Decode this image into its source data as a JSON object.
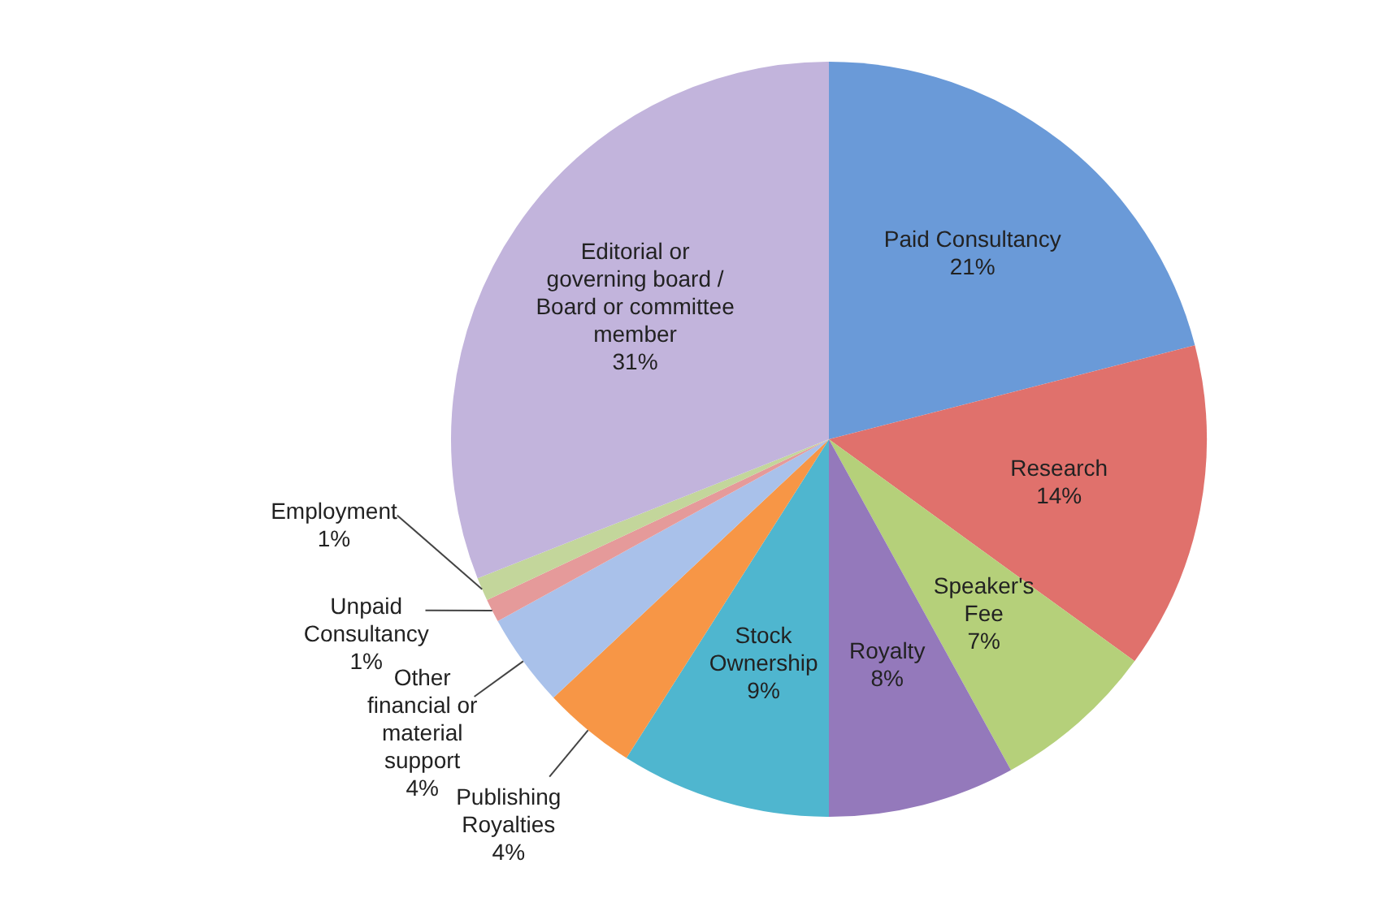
{
  "chart_data": {
    "type": "pie",
    "categories": [
      "Paid Consultancy",
      "Research",
      "Speaker's Fee",
      "Royalty",
      "Stock Ownership",
      "Publishing Royalties",
      "Other financial or material support",
      "Unpaid Consultancy",
      "Employment",
      "Editorial or governing board / Board or committee member"
    ],
    "values": [
      21,
      14,
      7,
      8,
      9,
      4,
      4,
      1,
      1,
      31
    ],
    "value_labels": [
      "21%",
      "14%",
      "7%",
      "8%",
      "9%",
      "4%",
      "4%",
      "1%",
      "1%",
      "31%"
    ],
    "colors": [
      "#6a9ad8",
      "#e0716c",
      "#b5d07a",
      "#9479bb",
      "#4fb6cf",
      "#f79646",
      "#a9c1ea",
      "#e59a9a",
      "#c3d69b",
      "#c2b4dc"
    ],
    "legend": false
  }
}
